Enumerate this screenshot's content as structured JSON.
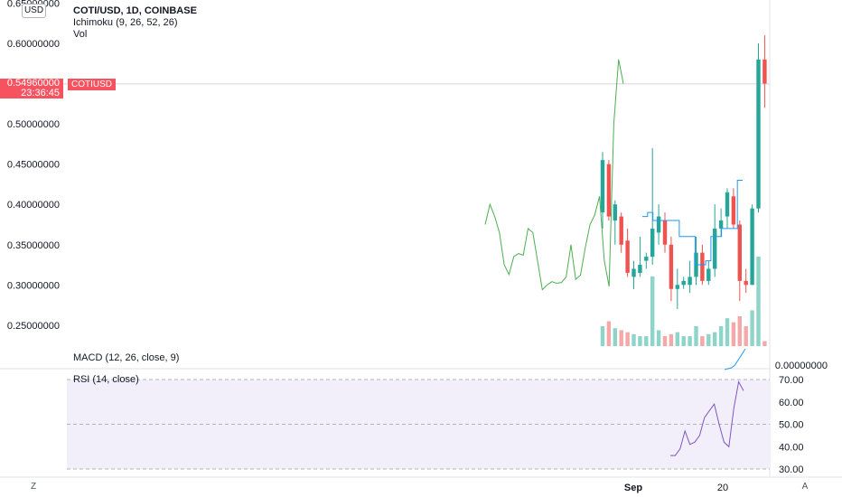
{
  "header": {
    "currency_button": "USD",
    "symbol_title": "COTI/USD, 1D, COINBASE",
    "ichimoku_label": "Ichimoku (9, 26, 52, 26)",
    "vol_label": "Vol",
    "macd_label": "MACD (12, 26, close, 9)",
    "rsi_label": "RSI (14, close)"
  },
  "last_price": {
    "value": "0.54960000",
    "countdown": "23:36:45",
    "symbol": "COTIUSD"
  },
  "buttons": {
    "timezone": "Z",
    "auto_scale": "A"
  },
  "colors": {
    "up": "#26a69a",
    "down": "#ef5350",
    "up_volume": "#8fd4c9",
    "down_volume": "#f4a8a8",
    "lagging_span": "#4caf50",
    "conversion_line": "#2196f3",
    "rsi_line": "#7e57c2",
    "rsi_band": "#f3effa",
    "last_price": "#f7525f"
  },
  "chart_data": [
    {
      "type": "candlestick",
      "title": "COTI/USD, 1D, COINBASE",
      "ylim": [
        0.2,
        0.65
      ],
      "y_ticks": [
        "0.65000000",
        "0.60000000",
        "0.55000000",
        "0.50000000",
        "0.45000000",
        "0.40000000",
        "0.35000000",
        "0.30000000",
        "0.25000000"
      ],
      "x_ticks": [
        "Sep",
        "20"
      ],
      "candles": [
        {
          "o": 0.39,
          "h": 0.465,
          "l": 0.37,
          "c": 0.455
        },
        {
          "o": 0.45,
          "h": 0.455,
          "l": 0.38,
          "c": 0.385
        },
        {
          "o": 0.38,
          "h": 0.405,
          "l": 0.35,
          "c": 0.4
        },
        {
          "o": 0.385,
          "h": 0.39,
          "l": 0.34,
          "c": 0.35
        },
        {
          "o": 0.355,
          "h": 0.37,
          "l": 0.31,
          "c": 0.315
        },
        {
          "o": 0.31,
          "h": 0.33,
          "l": 0.295,
          "c": 0.32
        },
        {
          "o": 0.315,
          "h": 0.36,
          "l": 0.31,
          "c": 0.325
        },
        {
          "o": 0.33,
          "h": 0.34,
          "l": 0.32,
          "c": 0.335
        },
        {
          "o": 0.335,
          "h": 0.47,
          "l": 0.325,
          "c": 0.37
        },
        {
          "o": 0.365,
          "h": 0.4,
          "l": 0.35,
          "c": 0.385
        },
        {
          "o": 0.38,
          "h": 0.39,
          "l": 0.34,
          "c": 0.35
        },
        {
          "o": 0.35,
          "h": 0.36,
          "l": 0.28,
          "c": 0.295
        },
        {
          "o": 0.295,
          "h": 0.32,
          "l": 0.27,
          "c": 0.3
        },
        {
          "o": 0.3,
          "h": 0.31,
          "l": 0.295,
          "c": 0.305
        },
        {
          "o": 0.3,
          "h": 0.33,
          "l": 0.29,
          "c": 0.31
        },
        {
          "o": 0.31,
          "h": 0.36,
          "l": 0.3,
          "c": 0.34
        },
        {
          "o": 0.34,
          "h": 0.35,
          "l": 0.3,
          "c": 0.305
        },
        {
          "o": 0.305,
          "h": 0.33,
          "l": 0.3,
          "c": 0.32
        },
        {
          "o": 0.32,
          "h": 0.4,
          "l": 0.31,
          "c": 0.37
        },
        {
          "o": 0.37,
          "h": 0.395,
          "l": 0.36,
          "c": 0.38
        },
        {
          "o": 0.385,
          "h": 0.42,
          "l": 0.37,
          "c": 0.415
        },
        {
          "o": 0.41,
          "h": 0.42,
          "l": 0.37,
          "c": 0.375
        },
        {
          "o": 0.375,
          "h": 0.38,
          "l": 0.28,
          "c": 0.305
        },
        {
          "o": 0.305,
          "h": 0.32,
          "l": 0.29,
          "c": 0.3
        },
        {
          "o": 0.3,
          "h": 0.4,
          "l": 0.3,
          "c": 0.395
        },
        {
          "o": 0.395,
          "h": 0.6,
          "l": 0.39,
          "c": 0.58
        },
        {
          "o": 0.58,
          "h": 0.61,
          "l": 0.52,
          "c": 0.55
        }
      ],
      "volume": [
        0.2,
        0.25,
        0.18,
        0.16,
        0.14,
        0.12,
        0.1,
        0.1,
        0.7,
        0.16,
        0.1,
        0.12,
        0.14,
        0.1,
        0.1,
        0.2,
        0.1,
        0.12,
        0.14,
        0.2,
        0.28,
        0.24,
        0.3,
        0.2,
        0.36,
        0.9,
        0.05
      ],
      "ichimoku_lagging_span": [
        0.375,
        0.4,
        0.385,
        0.365,
        0.325,
        0.313,
        0.335,
        0.339,
        0.337,
        0.37,
        0.365,
        0.33,
        0.294,
        0.3,
        0.304,
        0.302,
        0.303,
        0.31,
        0.35,
        0.307,
        0.312,
        0.346,
        0.375,
        0.387,
        0.41,
        0.33,
        0.298,
        0.5,
        0.58,
        0.55
      ],
      "ichimoku_conversion_line": [
        0.385,
        0.39,
        0.38,
        0.38,
        0.38,
        0.38,
        0.38,
        0.36,
        0.36,
        0.36,
        0.325,
        0.325,
        0.33,
        0.36,
        0.36,
        0.37,
        0.37,
        0.37,
        0.43,
        0.43
      ],
      "last_price": 0.5496
    },
    {
      "type": "line",
      "title": "MACD (12, 26, close, 9)",
      "y_ticks": [
        "0.00000000"
      ],
      "values": [
        -0.005,
        -0.004,
        -0.003,
        0.0,
        0.006,
        0.012,
        0.018
      ]
    },
    {
      "type": "line",
      "title": "RSI (14, close)",
      "ylim": [
        30,
        70
      ],
      "y_ticks": [
        "70.00",
        "60.00",
        "50.00",
        "40.00",
        "30.00"
      ],
      "band": [
        30,
        70
      ],
      "values": [
        36,
        36,
        39,
        47,
        41,
        42,
        45,
        53,
        56,
        59,
        50,
        42,
        40,
        57,
        69,
        65
      ]
    }
  ]
}
